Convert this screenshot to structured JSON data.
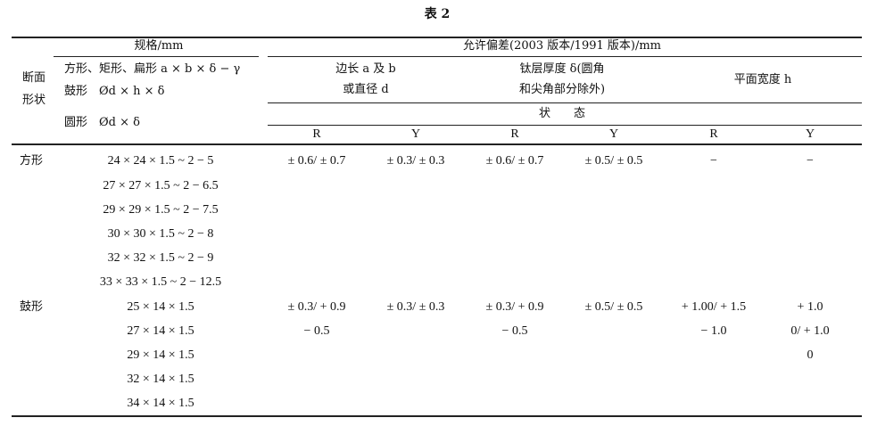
{
  "title": "表 2",
  "header": {
    "spec": "规格/mm",
    "tolerance": "允许偏差(2003 版本/1991 版本)/mm",
    "section_shape": [
      "断面",
      "形状"
    ],
    "shape_lines": [
      "方形、矩形、扁形 a × b × δ − γ",
      "鼓形　Ød × h × δ",
      "圆形　Ød × δ"
    ],
    "side_length": [
      "边长 a 及 b",
      "或直径 d"
    ],
    "ti_thickness": [
      "钛层厚度 δ(圆角",
      "和尖角部分除外)"
    ],
    "flat_width": "平面宽度 h",
    "state": "状　　态",
    "sub_cols": [
      "R",
      "Y",
      "R",
      "Y",
      "R",
      "Y"
    ]
  },
  "rows": [
    {
      "shape": "方形",
      "spec": "24 × 24 × 1.5 ~ 2 − 5",
      "vals": [
        "± 0.6/ ± 0.7",
        "± 0.3/ ± 0.3",
        "± 0.6/ ± 0.7",
        "± 0.5/ ± 0.5",
        "−",
        "−"
      ]
    },
    {
      "shape": "",
      "spec": "27 × 27 × 1.5 ~ 2 − 6.5",
      "vals": [
        "",
        "",
        "",
        "",
        "",
        ""
      ]
    },
    {
      "shape": "",
      "spec": "29 × 29 × 1.5 ~ 2 − 7.5",
      "vals": [
        "",
        "",
        "",
        "",
        "",
        ""
      ]
    },
    {
      "shape": "",
      "spec": "30 × 30 × 1.5 ~ 2 − 8",
      "vals": [
        "",
        "",
        "",
        "",
        "",
        ""
      ]
    },
    {
      "shape": "",
      "spec": "32 × 32 × 1.5 ~ 2 − 9",
      "vals": [
        "",
        "",
        "",
        "",
        "",
        ""
      ]
    },
    {
      "shape": "",
      "spec": "33 × 33 × 1.5 ~ 2 − 12.5",
      "vals": [
        "",
        "",
        "",
        "",
        "",
        ""
      ]
    },
    {
      "shape": "鼓形",
      "spec": "25 × 14 × 1.5",
      "vals": [
        "± 0.3/ + 0.9",
        "± 0.3/ ± 0.3",
        "± 0.3/ + 0.9",
        "± 0.5/ ± 0.5",
        "+ 1.00/ + 1.5",
        "+ 1.0"
      ]
    },
    {
      "shape": "",
      "spec": "27 × 14 × 1.5",
      "vals": [
        "− 0.5",
        "",
        "− 0.5",
        "",
        "− 1.0",
        "0/ + 1.0"
      ]
    },
    {
      "shape": "",
      "spec": "29 × 14 × 1.5",
      "vals": [
        "",
        "",
        "",
        "",
        "",
        "0"
      ]
    },
    {
      "shape": "",
      "spec": "32 × 14 × 1.5",
      "vals": [
        "",
        "",
        "",
        "",
        "",
        ""
      ]
    },
    {
      "shape": "",
      "spec": "34 × 14 × 1.5",
      "vals": [
        "",
        "",
        "",
        "",
        "",
        ""
      ]
    }
  ]
}
